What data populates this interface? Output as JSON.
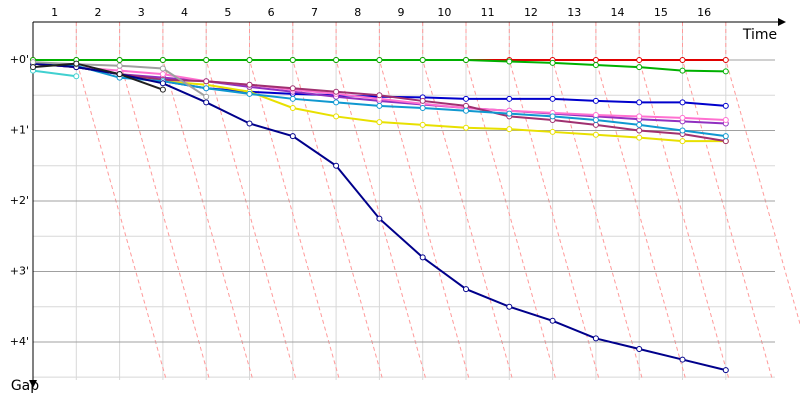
{
  "chart_data": {
    "type": "line",
    "x_label": "Time",
    "y_label": "Gap",
    "categories": [
      "1",
      "2",
      "3",
      "4",
      "5",
      "6",
      "7",
      "8",
      "9",
      "10",
      "11",
      "12",
      "13",
      "14",
      "15",
      "16"
    ],
    "x": [
      0,
      1,
      2,
      3,
      4,
      5,
      6,
      7,
      8,
      9,
      10,
      11,
      12,
      13,
      14,
      15,
      16
    ],
    "xlim": [
      0,
      17
    ],
    "ylim": [
      -0.54,
      4.54
    ],
    "yticks": [
      {
        "value": 0,
        "label": "+0'"
      },
      {
        "value": 1,
        "label": "+1'"
      },
      {
        "value": 2,
        "label": "+2'"
      },
      {
        "value": 3,
        "label": "+3'"
      },
      {
        "value": 4,
        "label": "+4'"
      }
    ],
    "grid": true,
    "series": [
      {
        "color": "#e00000",
        "values": [
          0,
          0,
          0,
          0,
          0,
          0,
          0,
          0,
          0,
          0,
          0,
          0,
          0,
          0,
          0,
          0,
          0
        ]
      },
      {
        "color": "#00b000",
        "values": [
          0,
          0,
          0,
          0,
          0,
          0,
          0,
          0,
          0,
          0,
          0,
          0.02,
          0.04,
          0.07,
          0.1,
          0.15,
          0.16
        ]
      },
      {
        "color": "#0000cc",
        "values": [
          0.05,
          0.1,
          0.2,
          0.3,
          0.4,
          0.45,
          0.48,
          0.5,
          0.52,
          0.53,
          0.55,
          0.55,
          0.55,
          0.58,
          0.6,
          0.6,
          0.65
        ]
      },
      {
        "color": "#e8e000",
        "values": [
          0.05,
          0.1,
          0.2,
          0.3,
          0.35,
          0.45,
          0.68,
          0.8,
          0.88,
          0.92,
          0.96,
          0.98,
          1.02,
          1.06,
          1.1,
          1.15,
          1.15
        ]
      },
      {
        "color": "#9030c0",
        "values": [
          0.05,
          0.1,
          0.2,
          0.25,
          0.3,
          0.38,
          0.45,
          0.52,
          0.58,
          0.63,
          0.68,
          0.72,
          0.76,
          0.8,
          0.84,
          0.87,
          0.9
        ]
      },
      {
        "color": "#ff70d0",
        "values": [
          0.05,
          0.1,
          0.15,
          0.2,
          0.3,
          0.35,
          0.42,
          0.48,
          0.55,
          0.62,
          0.68,
          0.72,
          0.75,
          0.78,
          0.8,
          0.82,
          0.85
        ]
      },
      {
        "color": "#a03070",
        "values": [
          0.05,
          0.1,
          0.2,
          0.28,
          0.3,
          0.35,
          0.4,
          0.45,
          0.5,
          0.58,
          0.65,
          0.8,
          0.85,
          0.92,
          1.0,
          1.05,
          1.15
        ]
      },
      {
        "color": "#1098d0",
        "values": [
          0.05,
          0.08,
          0.25,
          0.3,
          0.4,
          0.48,
          0.55,
          0.6,
          0.65,
          0.68,
          0.72,
          0.76,
          0.8,
          0.85,
          0.92,
          1.0,
          1.08
        ]
      },
      {
        "color": "#00008b",
        "values": [
          0.05,
          0.1,
          0.2,
          0.33,
          0.6,
          0.9,
          1.08,
          1.5,
          2.25,
          2.8,
          3.25,
          3.5,
          3.7,
          3.95,
          4.1,
          4.25,
          4.4
        ]
      },
      {
        "color": "#40d0d0",
        "values": [
          0.15,
          0.23,
          null,
          null,
          null,
          null,
          null,
          null,
          null,
          null,
          null,
          null,
          null,
          null,
          null,
          null,
          null
        ]
      },
      {
        "color": "#a0a0a0",
        "values": [
          0.03,
          0.06,
          0.08,
          0.12,
          0.52,
          null,
          null,
          null,
          null,
          null,
          null,
          null,
          null,
          null,
          null,
          null,
          null
        ]
      },
      {
        "color": "#202020",
        "values": [
          0.1,
          0.05,
          0.2,
          0.42,
          null,
          null,
          null,
          null,
          null,
          null,
          null,
          null,
          null,
          null,
          null,
          null,
          null
        ]
      }
    ]
  }
}
